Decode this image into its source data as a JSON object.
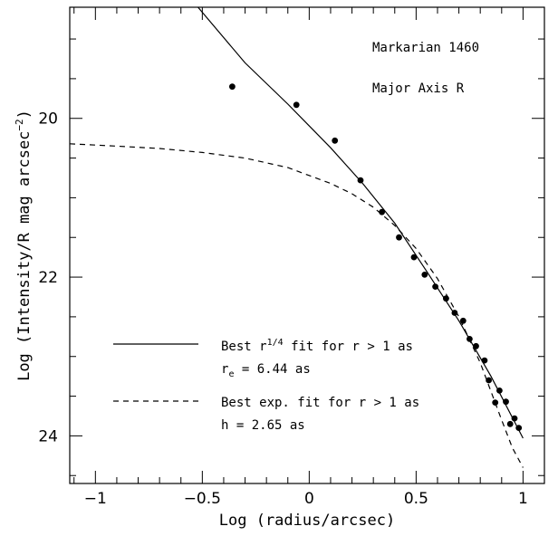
{
  "chart_data": {
    "type": "scatter",
    "title": "",
    "xlabel": "Log (radius/arcsec)",
    "ylabel": "Log (Intensity/R mag arcsec",
    "ylabel_sup": "−2",
    "ylabel_close": ")",
    "xlim": [
      -1.12,
      1.1
    ],
    "ylim": [
      24.6,
      18.6
    ],
    "y_inverted": true,
    "x_ticks": [
      "−1",
      "−0.5",
      "0",
      "0.5",
      "1"
    ],
    "x_tick_values": [
      -1,
      -0.5,
      0,
      0.5,
      1
    ],
    "y_ticks": [
      "20",
      "22",
      "24"
    ],
    "y_tick_values": [
      20,
      22,
      24
    ],
    "grid": false,
    "annotations": {
      "object": "Markarian 1460",
      "axis": "Major Axis R"
    },
    "series": [
      {
        "kind": "points",
        "x": [
          -0.36,
          -0.06,
          0.12,
          0.24,
          0.34,
          0.42,
          0.49,
          0.54,
          0.59,
          0.64,
          0.68,
          0.72,
          0.75,
          0.78,
          0.82,
          0.84,
          0.87,
          0.89,
          0.92,
          0.94,
          0.96,
          0.98
        ],
        "y": [
          19.6,
          19.83,
          20.28,
          20.78,
          21.18,
          21.5,
          21.75,
          21.97,
          22.12,
          22.27,
          22.45,
          22.55,
          22.78,
          22.87,
          23.05,
          23.3,
          23.58,
          23.43,
          23.57,
          23.85,
          23.78,
          23.9
        ]
      },
      {
        "kind": "line",
        "style": "solid",
        "x": [
          -0.52,
          -0.3,
          -0.1,
          0.1,
          0.25,
          0.4,
          0.55,
          0.7,
          0.85,
          1.0
        ],
        "y": [
          18.6,
          19.3,
          19.82,
          20.37,
          20.82,
          21.32,
          21.93,
          22.55,
          23.25,
          24.03
        ]
      },
      {
        "kind": "line",
        "style": "dashed",
        "x": [
          -1.12,
          -0.9,
          -0.7,
          -0.5,
          -0.3,
          -0.1,
          0.1,
          0.2,
          0.3,
          0.4,
          0.5,
          0.6,
          0.7,
          0.8,
          0.9,
          0.95,
          1.0
        ],
        "y": [
          20.32,
          20.35,
          20.38,
          20.43,
          20.5,
          20.62,
          20.82,
          20.95,
          21.12,
          21.35,
          21.64,
          22.02,
          22.5,
          23.08,
          23.8,
          24.15,
          24.4
        ]
      }
    ],
    "legend": {
      "placement": "lower-left",
      "entries": [
        {
          "style": "solid",
          "line1_prefix": "Best r",
          "line1_sup": "1/4",
          "line1_suffix": " fit for r > 1 as",
          "line2_main": "r",
          "line2_sub": "e",
          "line2_suffix": " = 6.44 as"
        },
        {
          "style": "dashed",
          "line1_prefix": "Best exp. fit for r > 1 as",
          "line2_main": "h = 2.65 as"
        }
      ]
    }
  }
}
